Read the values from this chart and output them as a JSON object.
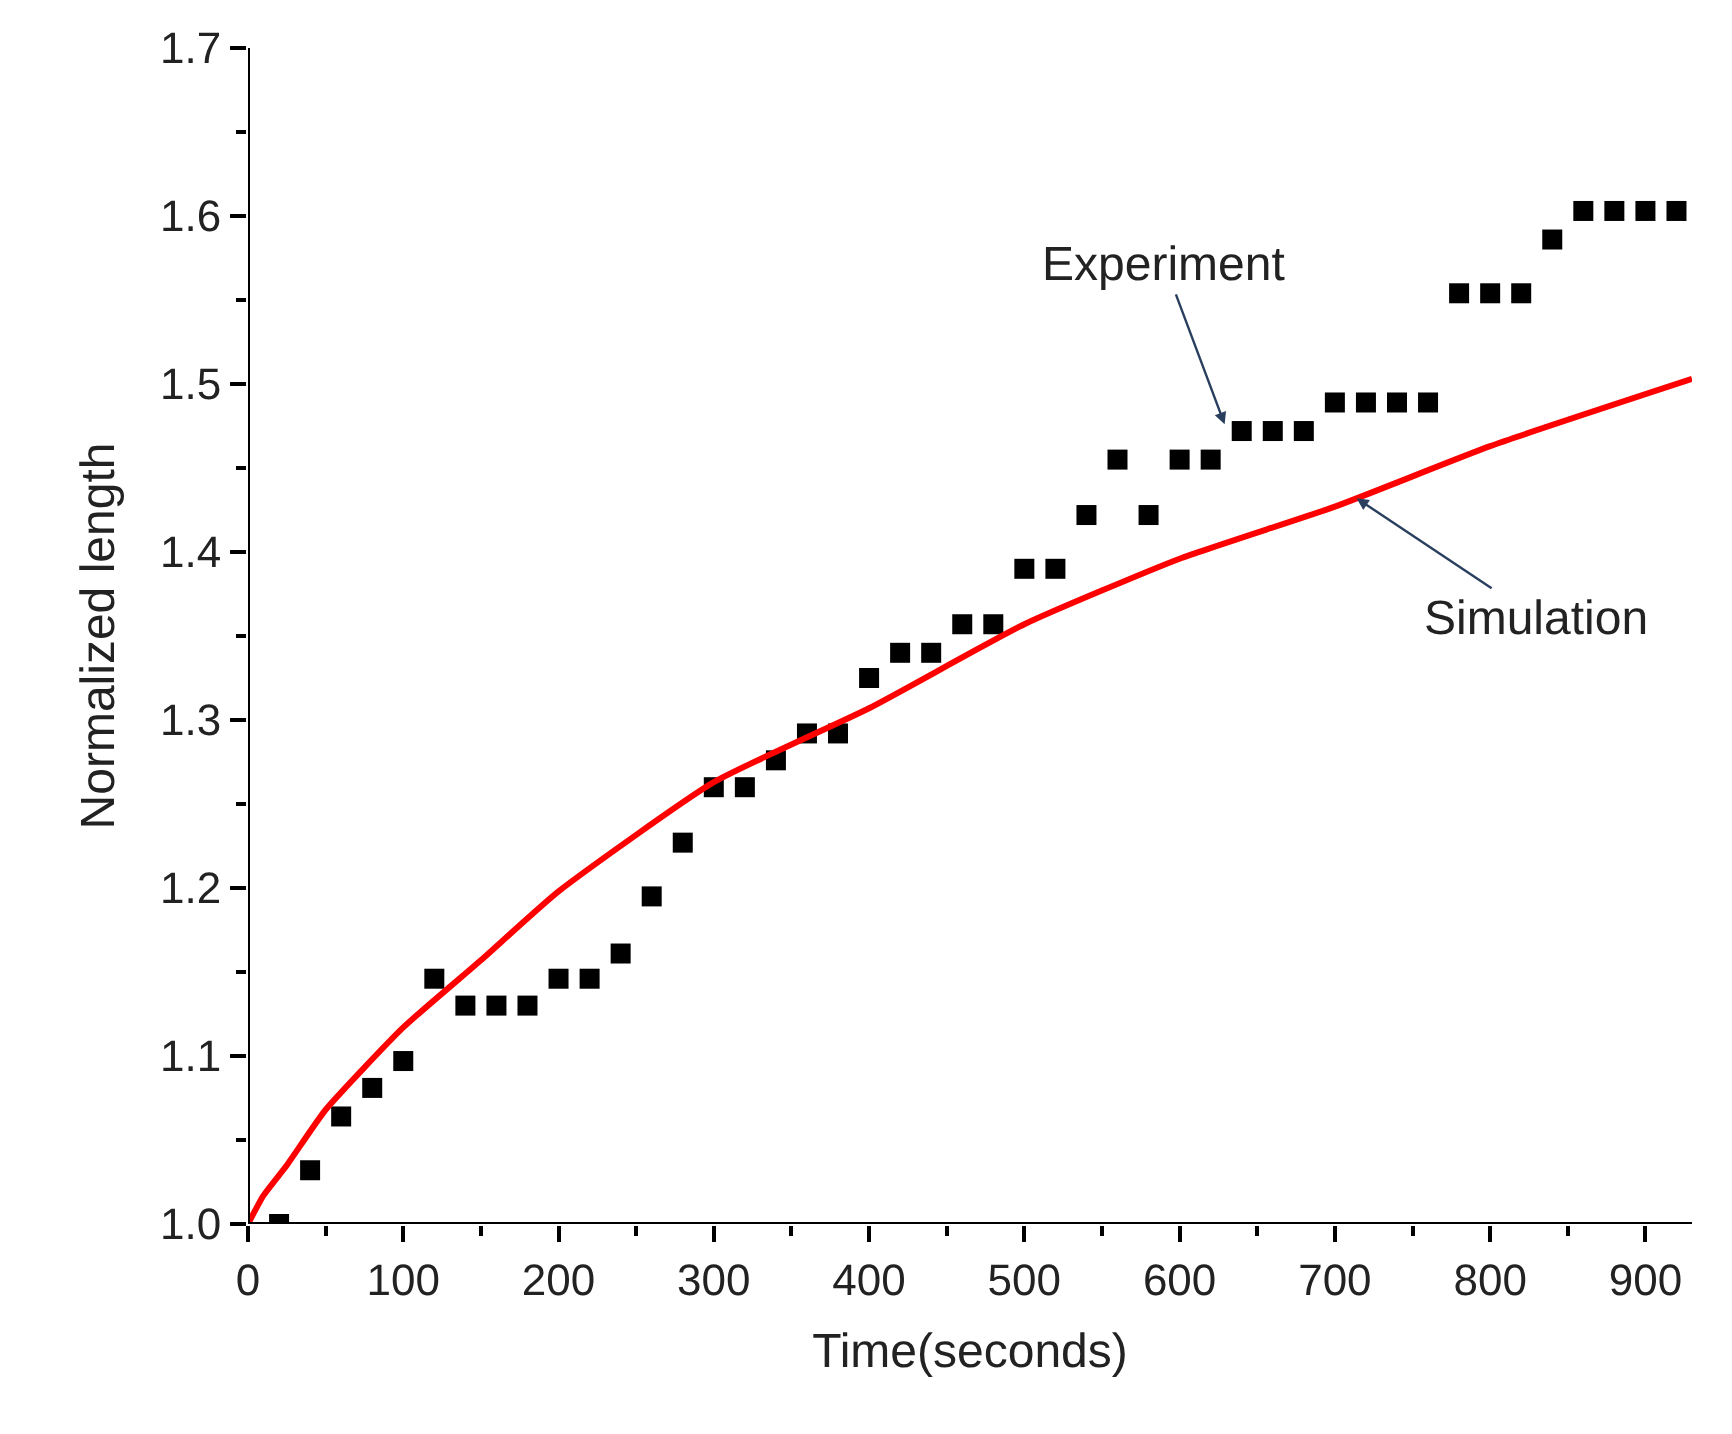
{
  "chart_data": {
    "type": "scatter",
    "xlabel": "Time(seconds)",
    "ylabel": "Normalized length",
    "xlim": [
      0,
      930
    ],
    "xticks": [
      0,
      100,
      200,
      300,
      400,
      500,
      600,
      700,
      800,
      900
    ],
    "ylim": [
      1.0,
      1.7
    ],
    "yticks": [
      {
        "value": 1.0,
        "label": "1.0"
      },
      1.1,
      1.2,
      1.3,
      1.4,
      1.5,
      1.6,
      1.7
    ],
    "series": [
      {
        "color": "#000000",
        "marker": "square",
        "x": [
          20,
          40,
          60,
          80,
          100,
          120,
          140,
          160,
          180,
          200,
          220,
          240,
          260,
          280,
          300,
          320,
          340,
          360,
          380,
          400,
          420,
          440,
          460,
          480,
          500,
          520,
          540,
          560,
          580,
          600,
          620,
          640,
          660,
          680,
          700,
          720,
          740,
          760,
          780,
          800,
          820,
          840,
          860,
          880,
          900,
          920
        ],
        "values": [
          1.0,
          1.032,
          1.064,
          1.081,
          1.097,
          1.146,
          1.13,
          1.13,
          1.13,
          1.146,
          1.146,
          1.161,
          1.195,
          1.227,
          1.26,
          1.26,
          1.276,
          1.292,
          1.292,
          1.325,
          1.34,
          1.34,
          1.357,
          1.357,
          1.39,
          1.39,
          1.422,
          1.455,
          1.422,
          1.455,
          1.455,
          1.472,
          1.472,
          1.472,
          1.489,
          1.489,
          1.489,
          1.489,
          1.554,
          1.554,
          1.554,
          1.586,
          1.603,
          1.603,
          1.603,
          1.603
        ]
      },
      {
        "type": "line",
        "color": "#ff0000",
        "line_style": "solid",
        "x": [
          0,
          10,
          25,
          50,
          100,
          150,
          200,
          300,
          400,
          500,
          600,
          700,
          800,
          930
        ],
        "values": [
          1.0,
          1.017,
          1.035,
          1.068,
          1.117,
          1.157,
          1.198,
          1.263,
          1.307,
          1.357,
          1.396,
          1.427,
          1.463,
          1.503
        ]
      }
    ],
    "annotations": [
      {
        "text": "Experiment",
        "x": 629,
        "y": 1.476
      },
      {
        "text": "Simulation",
        "x": 714,
        "y": 1.432
      }
    ]
  }
}
